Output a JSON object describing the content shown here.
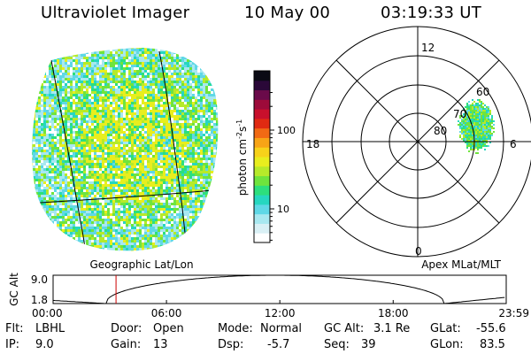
{
  "header": {
    "title": "Ultraviolet Imager",
    "date": "10 May 00",
    "time": "03:19:33 UT"
  },
  "colorbar": {
    "label": "photon cm⁻²s⁻¹",
    "label_main": "photon cm",
    "label_sup1": "-2",
    "label_mid": "s",
    "label_sup2": "-1",
    "ticks": [
      {
        "label": "100",
        "value": 100
      },
      {
        "label": "10",
        "value": 10
      }
    ],
    "colors": [
      "#ffffff",
      "#d9f0f5",
      "#a8e8f0",
      "#5fd8e6",
      "#26d7c0",
      "#2ddf7d",
      "#6fe43d",
      "#b6ea2a",
      "#e8ee1e",
      "#f7d21a",
      "#f7a416",
      "#f16a14",
      "#e02a12",
      "#c8102c",
      "#9d0b3a",
      "#6a0a4a",
      "#2a0838",
      "#0a0a14"
    ]
  },
  "globe": {
    "label": "Geographic Lat/Lon"
  },
  "polar": {
    "label": "Apex MLat/MLT",
    "mlt_labels": {
      "top": "12",
      "left": "18",
      "right": "6",
      "bottom": "0"
    },
    "lat_labels": [
      "60",
      "70",
      "80"
    ]
  },
  "altitude_plot": {
    "ylabel": "GC Alt",
    "yticks": [
      "9.0",
      "1.8"
    ],
    "ymin": 1.8,
    "ymax": 9.0,
    "xticks": [
      "00:00",
      "06:00",
      "12:00",
      "18:00",
      "23:59"
    ],
    "current_time_hours": 3.33,
    "marker_color": "#cc0000"
  },
  "info": {
    "flt_label": "Flt:",
    "flt_value": "LBHL",
    "ip_label": "IP:",
    "ip_value": "9.0",
    "door_label": "Door:",
    "door_value": "Open",
    "gain_label": "Gain:",
    "gain_value": "13",
    "mode_label": "Mode:",
    "mode_value": "Normal",
    "dsp_label": "Dsp:",
    "dsp_value": "-5.7",
    "gcalt_label": "GC Alt:",
    "gcalt_value": "3.1 Re",
    "seq_label": "Seq:",
    "seq_value": "39",
    "glat_label": "GLat:",
    "glat_value": "-55.6",
    "glon_label": "GLon:",
    "glon_value": "83.5"
  }
}
